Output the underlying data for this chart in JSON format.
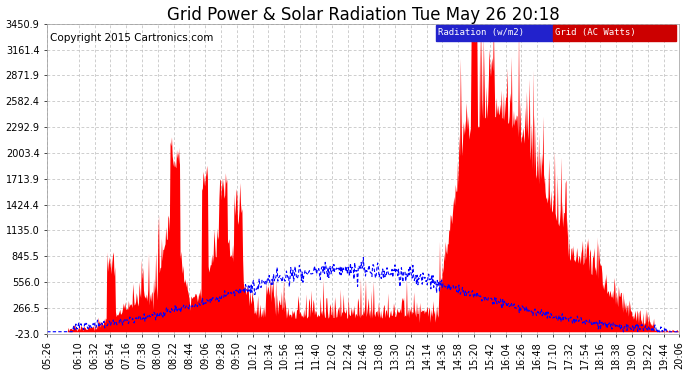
{
  "title": "Grid Power & Solar Radiation Tue May 26 20:18",
  "copyright": "Copyright 2015 Cartronics.com",
  "legend_radiation": "Radiation (w/m2)",
  "legend_grid": "Grid (AC Watts)",
  "yticks": [
    -23.0,
    266.5,
    556.0,
    845.5,
    1135.0,
    1424.4,
    1713.9,
    2003.4,
    2292.9,
    2582.4,
    2871.9,
    3161.4,
    3450.9
  ],
  "ymin": -23.0,
  "ymax": 3450.9,
  "bg_color": "#ffffff",
  "grid_color": "#bbbbbb",
  "fill_color": "#ff0000",
  "radiation_color": "#0000ff",
  "title_fontsize": 12,
  "copyright_fontsize": 7.5,
  "tick_fontsize": 7,
  "xtick_labels": [
    "05:26",
    "06:10",
    "06:32",
    "06:54",
    "07:16",
    "07:38",
    "08:00",
    "08:22",
    "08:44",
    "09:06",
    "09:28",
    "09:50",
    "10:12",
    "10:34",
    "10:56",
    "11:18",
    "11:40",
    "12:02",
    "12:24",
    "12:46",
    "13:08",
    "13:30",
    "13:52",
    "14:14",
    "14:36",
    "14:58",
    "15:20",
    "15:42",
    "16:04",
    "16:26",
    "16:48",
    "17:10",
    "17:32",
    "17:54",
    "18:16",
    "18:38",
    "19:00",
    "19:22",
    "19:44",
    "20:06"
  ]
}
